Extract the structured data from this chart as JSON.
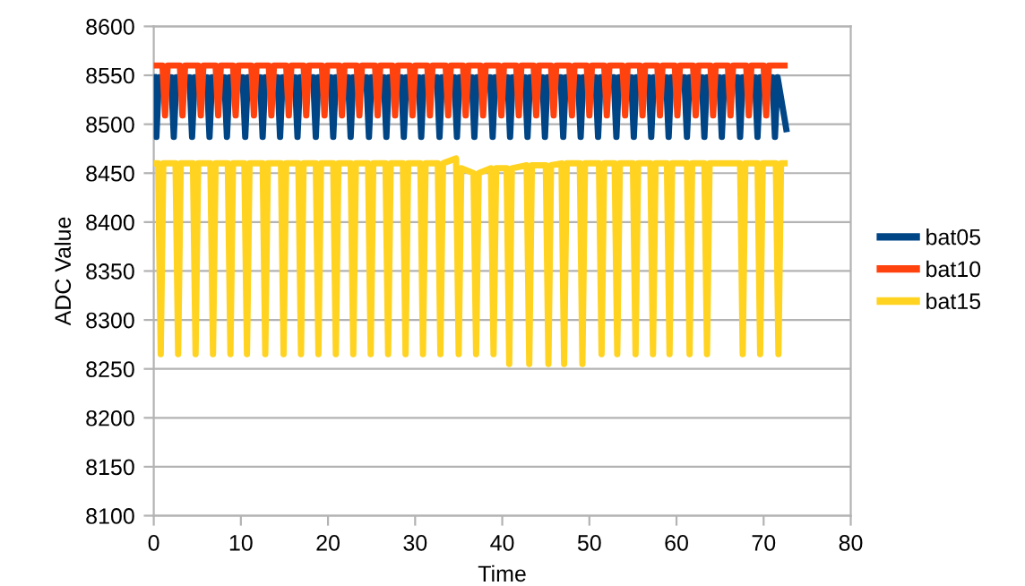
{
  "chart_data": {
    "type": "line",
    "xlabel": "Time",
    "ylabel": "ADC Value",
    "xlim": [
      0,
      80
    ],
    "xticks": [
      0,
      10,
      20,
      30,
      40,
      50,
      60,
      70,
      80
    ],
    "ylim": [
      8100,
      8600
    ],
    "yticks": [
      8100,
      8150,
      8200,
      8250,
      8300,
      8350,
      8400,
      8450,
      8500,
      8550,
      8600
    ],
    "grid": "y",
    "legend": "right",
    "marker": "none",
    "line_style": "solid",
    "series": [
      {
        "name": "bat05",
        "color": "#004586",
        "x": [
          0,
          0.3,
          0.6,
          2.0,
          2.3,
          2.6,
          4.1,
          4.4,
          4.7,
          6.1,
          6.4,
          6.7,
          8.1,
          8.4,
          8.7,
          10.2,
          10.5,
          10.8,
          12.2,
          12.5,
          12.8,
          14.2,
          14.5,
          14.8,
          16.2,
          16.5,
          16.8,
          18.3,
          18.6,
          18.9,
          20.3,
          20.6,
          20.9,
          22.3,
          22.6,
          22.9,
          24.4,
          24.7,
          25.0,
          26.4,
          26.7,
          27.0,
          28.4,
          28.7,
          29.0,
          30.4,
          30.7,
          31.0,
          32.5,
          32.8,
          33.1,
          34.5,
          34.8,
          35.1,
          36.5,
          36.8,
          37.1,
          38.6,
          38.9,
          39.2,
          40.6,
          40.9,
          41.2,
          42.6,
          42.9,
          43.2,
          44.6,
          44.9,
          45.2,
          46.7,
          47.0,
          47.3,
          48.7,
          49.0,
          49.3,
          50.7,
          51.0,
          51.3,
          52.8,
          53.1,
          53.4,
          54.8,
          55.1,
          55.4,
          56.8,
          57.1,
          57.4,
          58.8,
          59.1,
          59.4,
          60.9,
          61.2,
          61.5,
          62.9,
          63.2,
          63.5,
          64.9,
          65.2,
          65.5,
          67.0,
          67.3,
          67.6,
          69.0,
          69.3,
          69.6,
          71.0,
          71.3,
          71.6,
          72.6
        ],
        "values": [
          8548,
          8487,
          8548,
          8548,
          8487,
          8548,
          8548,
          8487,
          8548,
          8548,
          8487,
          8548,
          8548,
          8487,
          8548,
          8548,
          8487,
          8548,
          8548,
          8487,
          8548,
          8548,
          8487,
          8548,
          8548,
          8487,
          8548,
          8548,
          8487,
          8548,
          8548,
          8487,
          8548,
          8548,
          8487,
          8548,
          8548,
          8487,
          8548,
          8548,
          8487,
          8548,
          8548,
          8487,
          8548,
          8548,
          8487,
          8548,
          8548,
          8487,
          8548,
          8548,
          8487,
          8548,
          8548,
          8487,
          8548,
          8548,
          8487,
          8548,
          8548,
          8487,
          8548,
          8548,
          8487,
          8548,
          8548,
          8487,
          8548,
          8548,
          8487,
          8548,
          8548,
          8487,
          8548,
          8548,
          8487,
          8548,
          8548,
          8487,
          8548,
          8548,
          8487,
          8548,
          8548,
          8487,
          8548,
          8548,
          8487,
          8548,
          8548,
          8487,
          8548,
          8548,
          8487,
          8548,
          8548,
          8487,
          8548,
          8548,
          8487,
          8548,
          8548,
          8487,
          8548,
          8548,
          8487,
          8548,
          8495
        ]
      },
      {
        "name": "bat10",
        "color": "#ff420e",
        "x": [
          0,
          1.0,
          1.3,
          1.6,
          3.0,
          3.3,
          3.6,
          5.1,
          5.4,
          5.7,
          7.1,
          7.4,
          7.7,
          9.1,
          9.4,
          9.7,
          11.2,
          11.5,
          11.8,
          13.2,
          13.5,
          13.8,
          15.2,
          15.5,
          15.8,
          17.2,
          17.5,
          17.8,
          19.3,
          19.6,
          19.9,
          21.3,
          21.6,
          21.9,
          23.3,
          23.6,
          23.9,
          25.4,
          25.7,
          26.0,
          27.4,
          27.7,
          28.0,
          29.4,
          29.7,
          30.0,
          31.4,
          31.7,
          32.0,
          33.5,
          33.8,
          34.1,
          35.5,
          35.8,
          36.1,
          37.5,
          37.8,
          38.1,
          39.6,
          39.9,
          40.2,
          41.6,
          41.9,
          42.2,
          43.6,
          43.9,
          44.2,
          45.6,
          45.9,
          46.2,
          47.7,
          48.0,
          48.3,
          49.7,
          50.0,
          50.3,
          51.7,
          52.0,
          52.3,
          53.8,
          54.1,
          54.4,
          55.8,
          56.1,
          56.4,
          57.8,
          58.1,
          58.4,
          59.8,
          60.1,
          60.4,
          61.9,
          62.2,
          62.5,
          63.9,
          64.2,
          64.5,
          65.9,
          66.2,
          66.5,
          68.0,
          68.3,
          68.6,
          70.0,
          70.3,
          70.6,
          72.4
        ],
        "values": [
          8560,
          8560,
          8509,
          8560,
          8560,
          8509,
          8560,
          8560,
          8509,
          8560,
          8560,
          8509,
          8560,
          8560,
          8509,
          8560,
          8560,
          8509,
          8560,
          8560,
          8509,
          8560,
          8560,
          8509,
          8560,
          8560,
          8509,
          8560,
          8560,
          8509,
          8560,
          8560,
          8509,
          8560,
          8560,
          8509,
          8560,
          8560,
          8509,
          8560,
          8560,
          8509,
          8560,
          8560,
          8509,
          8560,
          8560,
          8509,
          8560,
          8560,
          8509,
          8560,
          8560,
          8509,
          8560,
          8560,
          8509,
          8560,
          8560,
          8509,
          8560,
          8560,
          8509,
          8560,
          8560,
          8509,
          8560,
          8560,
          8509,
          8560,
          8560,
          8509,
          8560,
          8560,
          8509,
          8560,
          8560,
          8509,
          8560,
          8560,
          8509,
          8560,
          8560,
          8509,
          8560,
          8560,
          8509,
          8560,
          8560,
          8509,
          8560,
          8560,
          8509,
          8560,
          8560,
          8509,
          8560,
          8560,
          8509,
          8560,
          8560,
          8509,
          8560,
          8560,
          8509,
          8560,
          8560
        ]
      },
      {
        "name": "bat15",
        "color": "#ffd320",
        "x": [
          0.2,
          0.5,
          0.8,
          1.1,
          2.5,
          2.8,
          3.1,
          4.5,
          4.8,
          5.1,
          6.5,
          6.8,
          7.1,
          8.5,
          8.8,
          9.1,
          10.4,
          10.7,
          11.0,
          12.5,
          12.8,
          13.1,
          14.6,
          14.9,
          15.2,
          16.6,
          16.9,
          17.2,
          18.6,
          18.9,
          19.2,
          20.6,
          20.9,
          21.2,
          22.6,
          22.9,
          23.2,
          24.6,
          24.9,
          25.2,
          26.6,
          26.9,
          27.2,
          28.6,
          28.9,
          29.2,
          30.6,
          30.9,
          31.2,
          32.6,
          32.9,
          33.2,
          34.7,
          35.0,
          35.3,
          36.7,
          37.0,
          37.3,
          38.7,
          39.0,
          39.3,
          40.5,
          40.8,
          41.1,
          42.8,
          43.1,
          43.4,
          45.0,
          45.3,
          45.6,
          46.8,
          47.1,
          47.4,
          48.9,
          49.2,
          49.5,
          51.1,
          51.4,
          51.7,
          52.9,
          53.2,
          53.5,
          55.0,
          55.3,
          55.6,
          57.0,
          57.3,
          57.6,
          58.9,
          59.2,
          59.5,
          61.2,
          61.5,
          61.8,
          63.2,
          63.5,
          63.8,
          67.3,
          67.6,
          67.9,
          69.3,
          69.6,
          69.9,
          71.4,
          71.7,
          72.0,
          72.4
        ],
        "values": [
          8460,
          8460,
          8265,
          8460,
          8460,
          8265,
          8460,
          8460,
          8265,
          8460,
          8460,
          8265,
          8460,
          8460,
          8265,
          8460,
          8460,
          8265,
          8460,
          8460,
          8265,
          8460,
          8460,
          8265,
          8460,
          8460,
          8265,
          8460,
          8460,
          8265,
          8460,
          8460,
          8265,
          8460,
          8460,
          8265,
          8460,
          8460,
          8265,
          8460,
          8460,
          8265,
          8460,
          8460,
          8265,
          8460,
          8460,
          8265,
          8460,
          8460,
          8265,
          8460,
          8465,
          8265,
          8455,
          8450,
          8265,
          8450,
          8455,
          8265,
          8455,
          8455,
          8255,
          8455,
          8458,
          8255,
          8458,
          8458,
          8255,
          8458,
          8460,
          8255,
          8460,
          8460,
          8255,
          8460,
          8460,
          8265,
          8460,
          8460,
          8265,
          8460,
          8460,
          8265,
          8460,
          8460,
          8265,
          8460,
          8460,
          8265,
          8460,
          8460,
          8265,
          8460,
          8460,
          8265,
          8460,
          8460,
          8265,
          8460,
          8460,
          8265,
          8460,
          8460,
          8265,
          8460,
          8460
        ]
      }
    ]
  }
}
